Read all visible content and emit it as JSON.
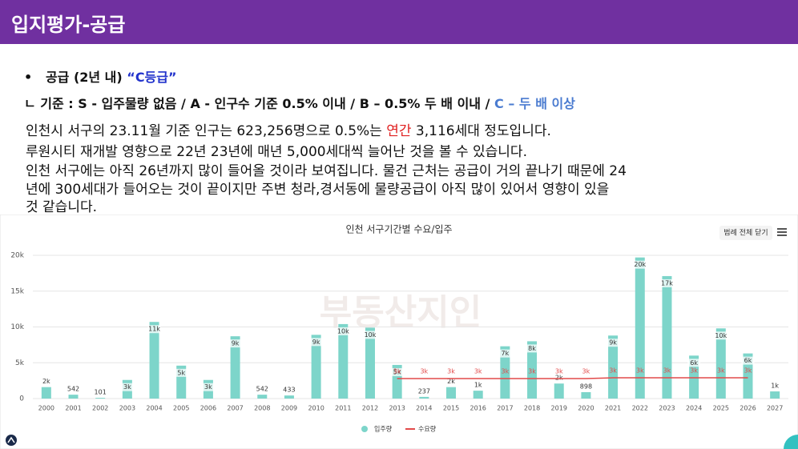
{
  "header": {
    "title": "입지평가-공급"
  },
  "bullet": {
    "label": "공급 (2년 내)",
    "grade": "“C등급”"
  },
  "criteria": {
    "text": "ㄴ 기준 : S - 입주물량 없음 / A - 인구수 기준 0.5% 이내 / B – 0.5% 두 배 이내 / ",
    "highlight": "C – 두 배 이상"
  },
  "paragraph": {
    "line1": {
      "before": "인천시 서구의 23.11월 기준 인구는 623,256명으로 0.5%는 ",
      "highlight": "연간",
      "after": " 3,116세대 정도입니다."
    },
    "lines": [
      "루원시티 재개발 영향으로 22년 23년에 매년 5,000세대씩 늘어난 것을 볼 수 있습니다.",
      "인천 서구에는 아직 26년까지 많이 들어올 것이라 보여집니다. 물건 근처는 공급이 거의 끝나기 때문에 24",
      "년에 300세대가 들어오는 것이 끝이지만 주변 청라,경서동에 물량공급이 아직 많이 있어서 영향이 있을",
      "것 같습니다."
    ]
  },
  "chart_data": {
    "type": "bar",
    "title": "인천 서구기간별 수요/입주",
    "button": "범례 전체 닫기",
    "watermark": "부동산지인",
    "categories": [
      "2000",
      "2001",
      "2002",
      "2003",
      "2004",
      "2005",
      "2006",
      "2007",
      "2008",
      "2009",
      "2010",
      "2011",
      "2012",
      "2013",
      "2014",
      "2015",
      "2016",
      "2017",
      "2018",
      "2019",
      "2020",
      "2021",
      "2022",
      "2023",
      "2024",
      "2025",
      "2026",
      "2027"
    ],
    "series": [
      {
        "name": "입주량",
        "type": "bar",
        "color": "#7dd5ca",
        "values": [
          1600,
          542,
          101,
          2600,
          10700,
          4600,
          2600,
          8700,
          542,
          433,
          8900,
          10400,
          9900,
          4700,
          237,
          1600,
          1100,
          7300,
          8000,
          2100,
          898,
          8800,
          19700,
          17100,
          6000,
          9800,
          6300,
          1000
        ],
        "value_labels": [
          "2k",
          "542",
          "101",
          "3k",
          "11k",
          "5k",
          "3k",
          "9k",
          "542",
          "433",
          "9k",
          "10k",
          "10k",
          "5k",
          "237",
          "2k",
          "1k",
          "7k",
          "8k",
          "2k",
          "898",
          "9k",
          "20k",
          "17k",
          "6k",
          "10k",
          "6k",
          "1k"
        ]
      },
      {
        "name": "수요량",
        "type": "line",
        "color": "#e24a4a",
        "values": [
          null,
          null,
          null,
          null,
          null,
          null,
          null,
          null,
          null,
          null,
          null,
          null,
          null,
          2800,
          2800,
          2800,
          2800,
          2800,
          2800,
          2800,
          2800,
          2900,
          2900,
          2900,
          2900,
          2900,
          2900,
          null
        ],
        "value_labels": [
          null,
          null,
          null,
          null,
          null,
          null,
          null,
          null,
          null,
          null,
          null,
          null,
          null,
          "3k",
          "3k",
          "3k",
          "3k",
          "3k",
          "3k",
          "3k",
          "3k",
          "3k",
          "3k",
          "3k",
          "3k",
          "3k",
          "3k",
          null
        ]
      }
    ],
    "ylim": [
      0,
      20000
    ],
    "yticks": [
      0,
      {
        "value": 5000,
        "label": "5k"
      },
      {
        "value": 10000,
        "label": "10k"
      },
      {
        "value": 15000,
        "label": "15k"
      },
      {
        "value": 20000,
        "label": "20k"
      }
    ],
    "grid": true,
    "legend": "bottom"
  }
}
